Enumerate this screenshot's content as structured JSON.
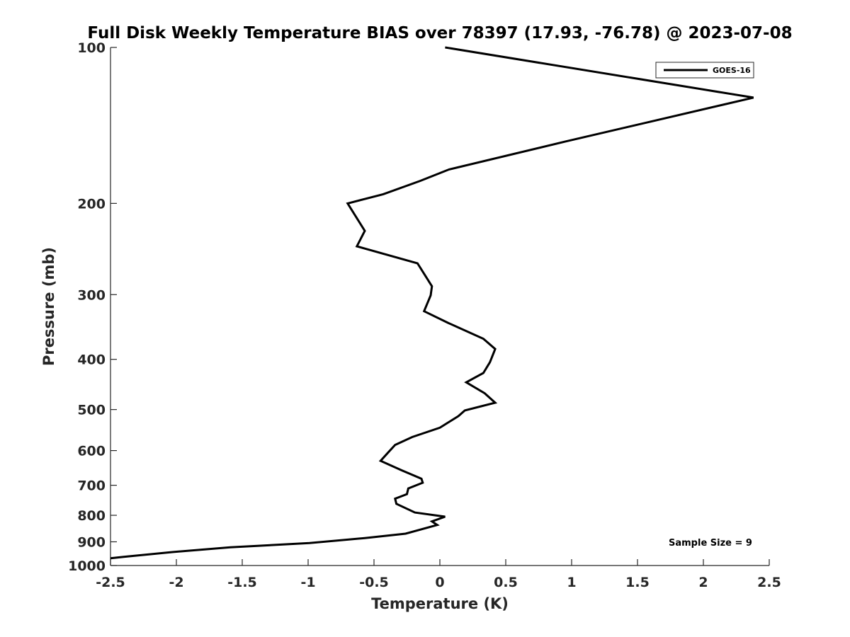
{
  "chart_data": {
    "type": "line",
    "title": "Full Disk Weekly Temperature BIAS over 78397 (17.93, -76.78) @ 2023-07-08",
    "xlabel": "Temperature (K)",
    "ylabel": "Pressure (mb)",
    "xlim": [
      -2.5,
      2.5
    ],
    "ylim": [
      100,
      1000
    ],
    "y_scale": "log",
    "y_reversed": true,
    "xticks": [
      -2.5,
      -2,
      -1.5,
      -1,
      -0.5,
      0,
      0.5,
      1,
      1.5,
      2,
      2.5
    ],
    "xtick_labels": [
      "-2.5",
      "-2",
      "-1.5",
      "-1",
      "-0.5",
      "0",
      "0.5",
      "1",
      "1.5",
      "2",
      "2.5"
    ],
    "yticks": [
      100,
      200,
      300,
      400,
      500,
      600,
      700,
      800,
      900,
      1000
    ],
    "ytick_labels": [
      "100",
      "200",
      "300",
      "400",
      "500",
      "600",
      "700",
      "800",
      "900",
      "1000"
    ],
    "grid": false,
    "legend": {
      "position": "top-right",
      "entries": [
        "GOES-16"
      ]
    },
    "series": [
      {
        "name": "GOES-16",
        "color": "#000000",
        "points": [
          {
            "x": 0.04,
            "y": 100
          },
          {
            "x": 2.38,
            "y": 125
          },
          {
            "x": 0.95,
            "y": 152
          },
          {
            "x": 0.07,
            "y": 172
          },
          {
            "x": -0.15,
            "y": 181
          },
          {
            "x": -0.43,
            "y": 192
          },
          {
            "x": -0.7,
            "y": 200
          },
          {
            "x": -0.57,
            "y": 226
          },
          {
            "x": -0.63,
            "y": 242
          },
          {
            "x": -0.17,
            "y": 261
          },
          {
            "x": -0.06,
            "y": 289
          },
          {
            "x": -0.07,
            "y": 301
          },
          {
            "x": -0.12,
            "y": 323
          },
          {
            "x": 0.06,
            "y": 340
          },
          {
            "x": 0.33,
            "y": 365
          },
          {
            "x": 0.42,
            "y": 382
          },
          {
            "x": 0.38,
            "y": 405
          },
          {
            "x": 0.33,
            "y": 425
          },
          {
            "x": 0.2,
            "y": 443
          },
          {
            "x": 0.34,
            "y": 465
          },
          {
            "x": 0.42,
            "y": 485
          },
          {
            "x": 0.19,
            "y": 502
          },
          {
            "x": 0.14,
            "y": 515
          },
          {
            "x": 0.0,
            "y": 542
          },
          {
            "x": -0.21,
            "y": 565
          },
          {
            "x": -0.34,
            "y": 585
          },
          {
            "x": -0.4,
            "y": 608
          },
          {
            "x": -0.45,
            "y": 628
          },
          {
            "x": -0.29,
            "y": 655
          },
          {
            "x": -0.14,
            "y": 680
          },
          {
            "x": -0.13,
            "y": 692
          },
          {
            "x": -0.24,
            "y": 710
          },
          {
            "x": -0.25,
            "y": 728
          },
          {
            "x": -0.34,
            "y": 743
          },
          {
            "x": -0.33,
            "y": 760
          },
          {
            "x": -0.19,
            "y": 790
          },
          {
            "x": 0.04,
            "y": 805
          },
          {
            "x": -0.06,
            "y": 822
          },
          {
            "x": -0.02,
            "y": 835
          },
          {
            "x": -0.26,
            "y": 868
          },
          {
            "x": -0.57,
            "y": 885
          },
          {
            "x": -0.99,
            "y": 905
          },
          {
            "x": -1.59,
            "y": 922
          },
          {
            "x": -2.03,
            "y": 942
          },
          {
            "x": -2.4,
            "y": 962
          },
          {
            "x": -2.5,
            "y": 968
          }
        ]
      }
    ],
    "annotations": [
      "Sample Size = 9"
    ]
  }
}
